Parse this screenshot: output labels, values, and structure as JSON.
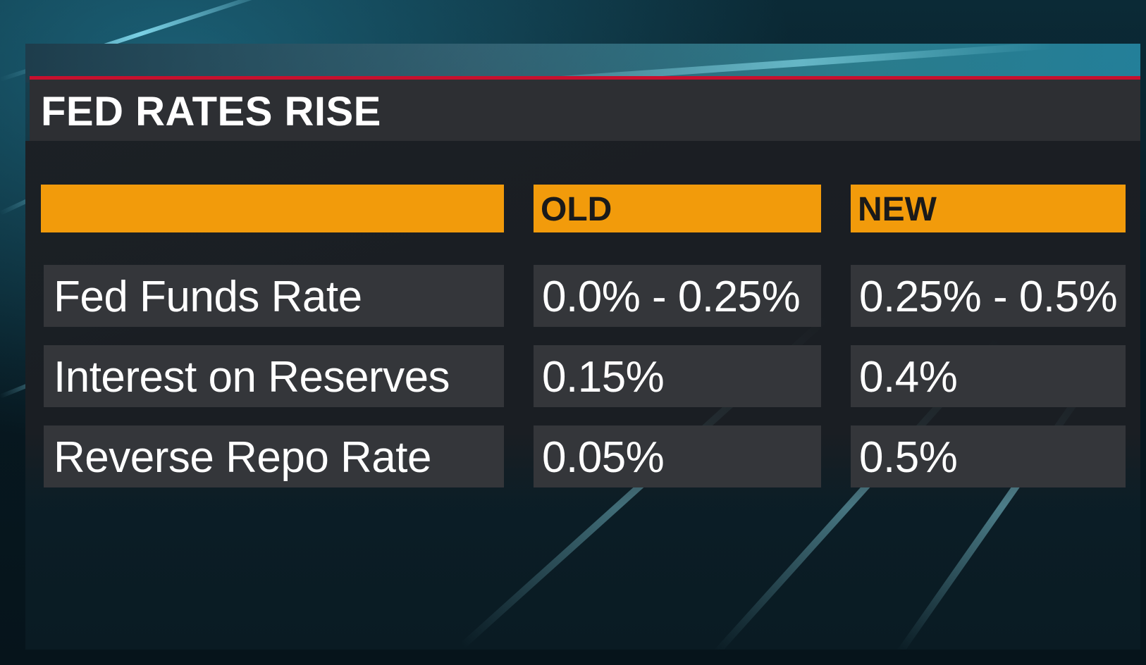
{
  "chart_data": {
    "type": "table",
    "title": "FED RATES RISE",
    "columns": [
      "",
      "OLD",
      "NEW"
    ],
    "rows": [
      {
        "label": "Fed Funds Rate",
        "old": "0.0% - 0.25%",
        "new": "0.25% - 0.5%"
      },
      {
        "label": "Interest on Reserves",
        "old": "0.15%",
        "new": "0.4%"
      },
      {
        "label": "Reverse Repo Rate",
        "old": "0.05%",
        "new": "0.5%"
      }
    ]
  },
  "colors": {
    "header_accent": "#f29b0b",
    "title_rule": "#c8102e",
    "title_bar": "#2d2f33",
    "cell_fill": "#34363a"
  }
}
